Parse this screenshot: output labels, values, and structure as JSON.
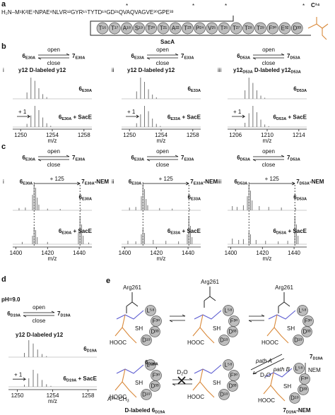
{
  "panel_a": {
    "label": "a",
    "sequence": "H₂N–M¹K²IE⁴NPAE⁸NLVR¹²GYR¹⁵TYTD¹⁹GD²¹QVAQVAGVE³⁰GPE³³",
    "mark": "*",
    "beads": [
      "T¹⁶",
      "T¹⁷",
      "A¹⁸",
      "S¹⁹",
      "T²⁰",
      "T²¹",
      "A²²",
      "T²³",
      "P²⁴",
      "V²⁵",
      "T²⁶",
      "T²⁷",
      "T²⁸",
      "T²⁹",
      "F³⁰",
      "E³²",
      "D³³"
    ],
    "residue": "C³⁴",
    "name": "SacA"
  },
  "panel_b": {
    "label": "b",
    "schemes": [
      {
        "from": [
          "6",
          "E30A"
        ],
        "to": [
          "7",
          "E30A"
        ],
        "open": "open",
        "close": "close"
      },
      {
        "from": [
          "6",
          "E33A"
        ],
        "to": [
          "7",
          "E33A"
        ],
        "open": "open",
        "close": "close"
      },
      {
        "from": [
          "6",
          "D53A"
        ],
        "to": [
          "7",
          "D53A"
        ],
        "open": "open",
        "close": "close"
      }
    ],
    "spectra": [
      {
        "numeral": "i",
        "ions": "y12  D-labeled y12",
        "shift": "+ 1",
        "xlim": [
          1249,
          1259
        ],
        "xticks": [
          1250,
          1254,
          1258
        ],
        "xlabel": "m/z",
        "traces": [
          {
            "label": [
              "6",
              "E30A"
            ],
            "mz": [
              1250.8,
              1251.3,
              1251.8,
              1252.3,
              1252.8,
              1253.3
            ],
            "int": [
              30,
              100,
              85,
              50,
              22,
              8
            ]
          },
          {
            "label": [
              "6",
              "E30A",
              " + SacE"
            ],
            "mz": [
              1250.8,
              1251.3,
              1251.8,
              1252.3,
              1252.8,
              1253.3,
              1253.8
            ],
            "int": [
              15,
              55,
              100,
              80,
              45,
              18,
              6
            ]
          }
        ]
      },
      {
        "numeral": "ii",
        "ions": "y12  D-labeled y12",
        "shift": "+ 1",
        "xlim": [
          1249,
          1259
        ],
        "xticks": [
          1250,
          1254,
          1258
        ],
        "xlabel": "m/z",
        "traces": [
          {
            "label": [
              "6",
              "E33A"
            ],
            "mz": [
              1250.9,
              1251.4,
              1251.9,
              1252.4,
              1252.9,
              1253.4
            ],
            "int": [
              35,
              100,
              80,
              45,
              20,
              7
            ]
          },
          {
            "label": [
              "6",
              "E33A",
              " + SacE"
            ],
            "mz": [
              1250.9,
              1251.4,
              1251.9,
              1252.4,
              1252.9,
              1253.4,
              1253.9
            ],
            "int": [
              18,
              60,
              100,
              75,
              40,
              15,
              5
            ]
          }
        ]
      },
      {
        "numeral": "iii",
        "ions": [
          "y12",
          "D53A",
          "  D-labeled y12",
          "D53A"
        ],
        "shift": "+ 1",
        "xlim": [
          1205,
          1215
        ],
        "xticks": [
          1206,
          1210,
          1214
        ],
        "xlabel": "m/z",
        "traces": [
          {
            "label": [
              "6",
              "D53A"
            ],
            "mz": [
              1207.2,
              1207.7,
              1208.2,
              1208.7,
              1209.2,
              1209.7
            ],
            "int": [
              40,
              100,
              75,
              40,
              15,
              5
            ]
          },
          {
            "label": [
              "6",
              "D53A",
              " + SacE"
            ],
            "mz": [
              1207.2,
              1207.7,
              1208.2,
              1208.7,
              1209.2,
              1209.7,
              1210.2
            ],
            "int": [
              20,
              65,
              100,
              70,
              35,
              12,
              4
            ]
          }
        ]
      }
    ]
  },
  "panel_c": {
    "label": "c",
    "schemes": [
      {
        "from": [
          "6",
          "E30A"
        ],
        "to": [
          "7",
          "E30A"
        ],
        "open": "open",
        "close": "close"
      },
      {
        "from": [
          "6",
          "E33A"
        ],
        "to": [
          "7",
          "E33A"
        ],
        "open": "open",
        "close": "close"
      },
      {
        "from": [
          "6",
          "D53A"
        ],
        "to": [
          "7",
          "D53A"
        ],
        "open": "open",
        "close": "close"
      }
    ],
    "spectra": [
      {
        "numeral": "i",
        "start": [
          "6",
          "E30A"
        ],
        "mass_shift": "+ 125",
        "product": [
          "7",
          "E30A",
          "-NEM"
        ],
        "xlim": [
          1398,
          1448
        ],
        "xticks": [
          1400,
          1420,
          1440
        ],
        "xlabel": "m/z",
        "traces": [
          {
            "label": [
              "6",
              "E30A"
            ],
            "mz": [
              1402,
              1406,
              1410.5,
              1411.5,
              1412.5,
              1413.5,
              1414.5,
              1420,
              1428,
              1441
            ],
            "int": [
              8,
              10,
              55,
              100,
              80,
              45,
              20,
              6,
              5,
              4
            ]
          },
          {
            "label": [
              "6",
              "E30A",
              " + SacE"
            ],
            "mz": [
              1404,
              1410.5,
              1411.5,
              1412.5,
              1413.5,
              1420,
              1439.5,
              1440.5,
              1441.5,
              1442.5,
              1446
            ],
            "int": [
              8,
              30,
              60,
              50,
              25,
              8,
              40,
              100,
              70,
              30,
              6
            ]
          }
        ]
      },
      {
        "numeral": "ii",
        "start": [
          "6",
          "E33A"
        ],
        "mass_shift": "+ 125",
        "product": [
          "7",
          "E33A",
          "-NEM"
        ],
        "xlim": [
          1398,
          1448
        ],
        "xticks": [
          1400,
          1420,
          1440
        ],
        "xlabel": "m/z",
        "traces": [
          {
            "label": [
              "6",
              "E33A"
            ],
            "mz": [
              1403,
              1407,
              1410.5,
              1411.5,
              1412.5,
              1413.5,
              1414.5,
              1422,
              1430,
              1441
            ],
            "int": [
              10,
              12,
              50,
              100,
              75,
              40,
              18,
              8,
              6,
              5
            ]
          },
          {
            "label": [
              "6",
              "E33A",
              " + SacE"
            ],
            "mz": [
              1402,
              1407,
              1410.5,
              1411.5,
              1412.5,
              1418,
              1426,
              1434,
              1439.5,
              1440.5,
              1441.5,
              1442.5
            ],
            "int": [
              12,
              10,
              35,
              55,
              40,
              15,
              12,
              10,
              35,
              100,
              65,
              25
            ]
          }
        ]
      },
      {
        "numeral": "iii",
        "start": [
          "6",
          "D53A"
        ],
        "mass_shift": "+ 125",
        "product": [
          "7",
          "D53A",
          "-NEM"
        ],
        "xlim": [
          1398,
          1448
        ],
        "xticks": [
          1400,
          1420,
          1440
        ],
        "xlabel": "m/z",
        "traces": [
          {
            "label": [
              "6",
              "D53A"
            ],
            "mz": [
              1401,
              1404,
              1408,
              1410.5,
              1411.5,
              1412.5,
              1413.5,
              1418,
              1424,
              1432,
              1441
            ],
            "int": [
              15,
              12,
              18,
              50,
              100,
              70,
              35,
              15,
              12,
              10,
              8
            ]
          },
          {
            "label": [
              "6",
              "D53A",
              " + SacE"
            ],
            "mz": [
              1401,
              1405,
              1408,
              1411.5,
              1412.5,
              1416,
              1422,
              1430,
              1436,
              1440.5,
              1441.5,
              1442.5
            ],
            "int": [
              20,
              15,
              18,
              45,
              35,
              15,
              12,
              10,
              12,
              100,
              70,
              30
            ]
          }
        ]
      }
    ]
  },
  "panel_d": {
    "label": "d",
    "condition": "pH=9.0",
    "scheme": {
      "from": [
        "6",
        "D19A"
      ],
      "to": [
        "7",
        "D19A"
      ],
      "open": "open",
      "close": "close"
    },
    "spectrum": {
      "ions": "y12  D-labeled y12",
      "shift": "+ 1",
      "xlim": [
        1249,
        1259
      ],
      "xticks": [
        1250,
        1254,
        1258
      ],
      "xlabel": "m/z",
      "traces": [
        {
          "label": [
            "6",
            "D19A"
          ],
          "mz": [
            1250.8,
            1251.3,
            1251.8,
            1252.3,
            1252.8,
            1253.3
          ],
          "int": [
            25,
            100,
            80,
            45,
            18,
            6
          ]
        },
        {
          "label": [
            "6",
            "D19A",
            " + SacE"
          ],
          "mz": [
            1250.8,
            1251.3,
            1251.8,
            1252.3,
            1252.8,
            1253.3,
            1253.8
          ],
          "int": [
            12,
            50,
            100,
            78,
            40,
            15,
            5
          ]
        }
      ]
    }
  },
  "panel_e": {
    "label": "e",
    "arg": "Arg261",
    "beads": [
      "L⁵⁸",
      "F³⁰",
      "D³³",
      "D¹⁹"
    ],
    "start": [
      "6",
      "D19A"
    ],
    "open_form": [
      "7",
      "D19A"
    ],
    "path_a": "path A",
    "path_b": "path B",
    "d2o": [
      "D",
      "2",
      "O"
    ],
    "nem": "NEM",
    "labeled": [
      "D-labeled 6",
      "D19A"
    ],
    "nem_product": [
      "7",
      "D19A",
      "-NEM"
    ],
    "methyl": [
      "A¹⁹–CH",
      "3"
    ],
    "hooc": "HOOC",
    "sh": "SH"
  }
}
